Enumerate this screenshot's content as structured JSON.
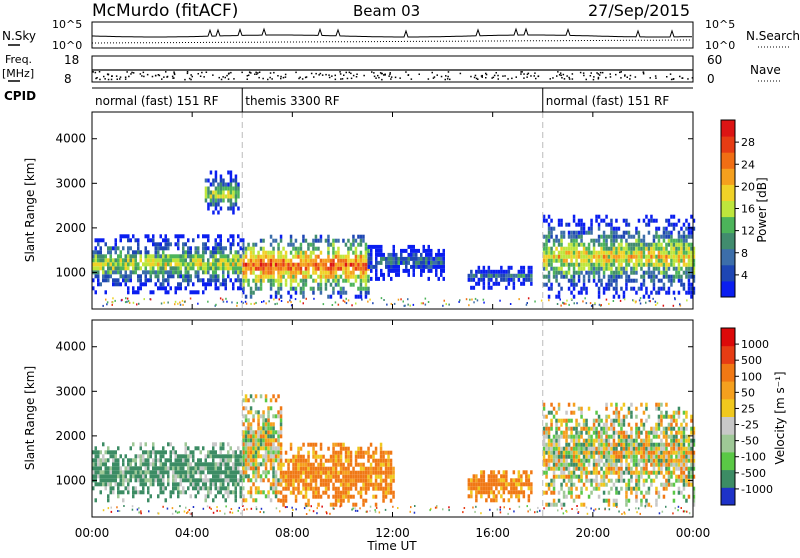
{
  "header": {
    "station": "McMurdo (fitACF)",
    "beam": "Beam 03",
    "date": "27/Sep/2015"
  },
  "noise_panel": {
    "left_label": "N.Sky",
    "right_label": "N.Search",
    "left_ticks": [
      "10^5",
      "10^0"
    ],
    "right_ticks": [
      "10^5",
      "10^0"
    ]
  },
  "freq_panel": {
    "left_label": "Freq.",
    "left_unit": "[MHz]",
    "right_label": "Nave",
    "left_ticks": [
      "18",
      "8"
    ],
    "right_ticks": [
      "60",
      "0"
    ]
  },
  "cpid": {
    "label": "CPID",
    "segments": [
      {
        "text": "normal (fast) 151 RF",
        "start_h": 0,
        "end_h": 6
      },
      {
        "text": "themis 3300 RF",
        "start_h": 6,
        "end_h": 18
      },
      {
        "text": "normal (fast) 151 RF",
        "start_h": 18,
        "end_h": 24
      }
    ]
  },
  "x_axis": {
    "label": "Time UT",
    "range_h": [
      0,
      24
    ],
    "ticks": [
      "00:00",
      "04:00",
      "08:00",
      "12:00",
      "16:00",
      "20:00",
      "00:00"
    ],
    "tick_hours": [
      0,
      4,
      8,
      12,
      16,
      20,
      24
    ]
  },
  "chart_data": [
    {
      "type": "heatmap",
      "title": "",
      "xlabel": "",
      "ylabel": "Slant Range [km]",
      "ylim": [
        180,
        4600
      ],
      "yticks": [
        "1000",
        "2000",
        "3000",
        "4000"
      ],
      "ytick_values": [
        1000,
        2000,
        3000,
        4000
      ],
      "colorbar": {
        "label": "Power [dB]",
        "ticks": [
          "4",
          "8",
          "12",
          "16",
          "20",
          "24",
          "28"
        ],
        "colors": [
          "#0a1ef0",
          "#1e46b4",
          "#3c6eaa",
          "#418c6e",
          "#4cb45a",
          "#bee63c",
          "#f0d228",
          "#f5a01e",
          "#f06e14",
          "#e63c14",
          "#dc1414"
        ]
      },
      "regions": [
        {
          "t0": 0.0,
          "t1": 6.0,
          "r0": 600,
          "r1": 1900,
          "level": 0.55
        },
        {
          "t0": 4.5,
          "t1": 5.8,
          "r0": 2300,
          "r1": 3300,
          "level": 0.5
        },
        {
          "t0": 6.0,
          "t1": 11.0,
          "r0": 500,
          "r1": 1900,
          "level": 0.8
        },
        {
          "t0": 11.0,
          "t1": 14.0,
          "r0": 900,
          "r1": 1700,
          "level": 0.3
        },
        {
          "t0": 15.0,
          "t1": 17.5,
          "r0": 700,
          "r1": 1200,
          "level": 0.3
        },
        {
          "t0": 18.0,
          "t1": 24.0,
          "r0": 500,
          "r1": 2300,
          "level": 0.6
        }
      ]
    },
    {
      "type": "heatmap",
      "title": "",
      "xlabel": "Time UT",
      "ylabel": "Slant Range [km]",
      "ylim": [
        180,
        4600
      ],
      "yticks": [
        "1000",
        "2000",
        "3000",
        "4000"
      ],
      "ytick_values": [
        1000,
        2000,
        3000,
        4000
      ],
      "colorbar": {
        "label": "Velocity [m s⁻¹]",
        "ticks": [
          "1000",
          "500",
          "100",
          "50",
          "25",
          "-25",
          "-50",
          "-100",
          "-500",
          "-1000"
        ],
        "colors": [
          "#1e32c8",
          "#3c8c64",
          "#5ac846",
          "#9ec896",
          "#c8c8c8",
          "#f0c81e",
          "#f5a01e",
          "#f07814",
          "#e63c14",
          "#dc0a0a"
        ]
      },
      "regions": [
        {
          "t0": 0.0,
          "t1": 6.0,
          "r0": 600,
          "r1": 1900,
          "dominant": "green"
        },
        {
          "t0": 6.0,
          "t1": 7.5,
          "r0": 600,
          "r1": 3000,
          "dominant": "mixed"
        },
        {
          "t0": 7.5,
          "t1": 12.0,
          "r0": 500,
          "r1": 1900,
          "dominant": "orange"
        },
        {
          "t0": 15.0,
          "t1": 17.5,
          "r0": 600,
          "r1": 1300,
          "dominant": "orange"
        },
        {
          "t0": 18.0,
          "t1": 24.0,
          "r0": 500,
          "r1": 2800,
          "dominant": "mixed"
        }
      ]
    }
  ]
}
